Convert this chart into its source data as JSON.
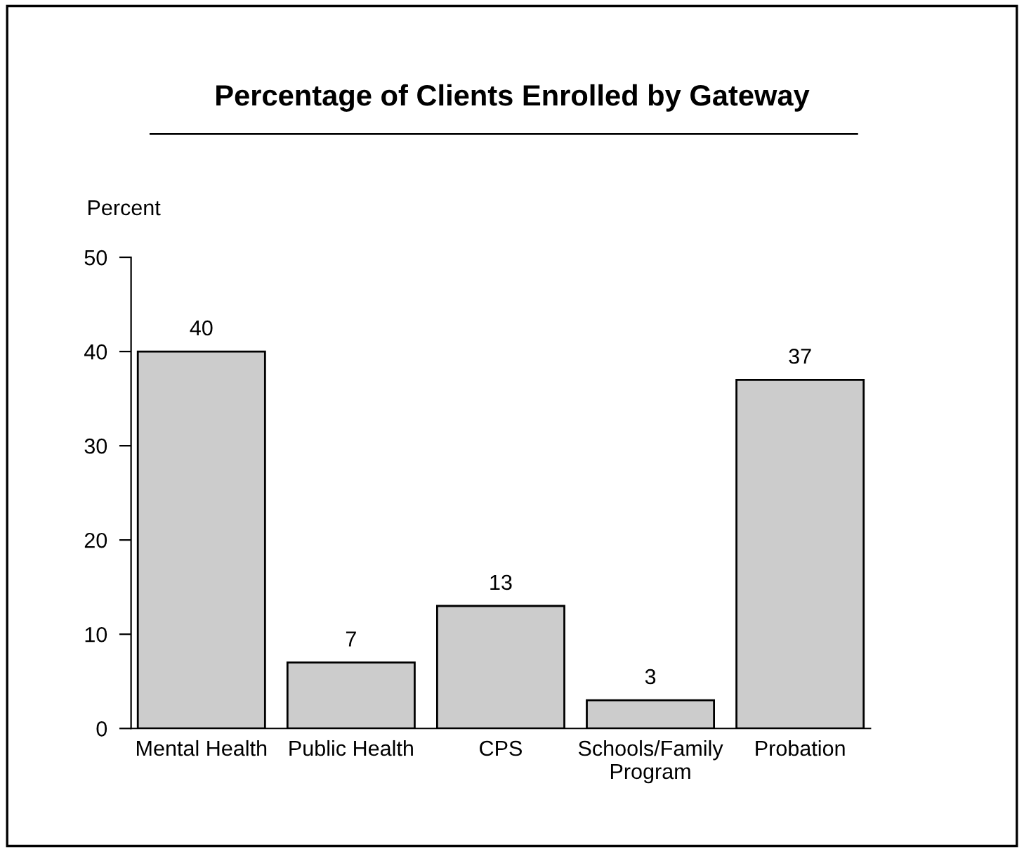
{
  "chart_data": {
    "type": "bar",
    "title": "Percentage of Clients Enrolled by Gateway",
    "ylabel": "Percent",
    "categories": [
      "Mental Health",
      "Public Health",
      "CPS",
      "Schools/Family\nProgram",
      "Probation"
    ],
    "values": [
      40,
      7,
      13,
      3,
      37
    ],
    "color": "#cccccc",
    "ylim": [
      0,
      50
    ],
    "yticks": [
      0,
      10,
      20,
      30,
      40,
      50
    ],
    "data_labels": true,
    "grid": false,
    "legend": false
  }
}
